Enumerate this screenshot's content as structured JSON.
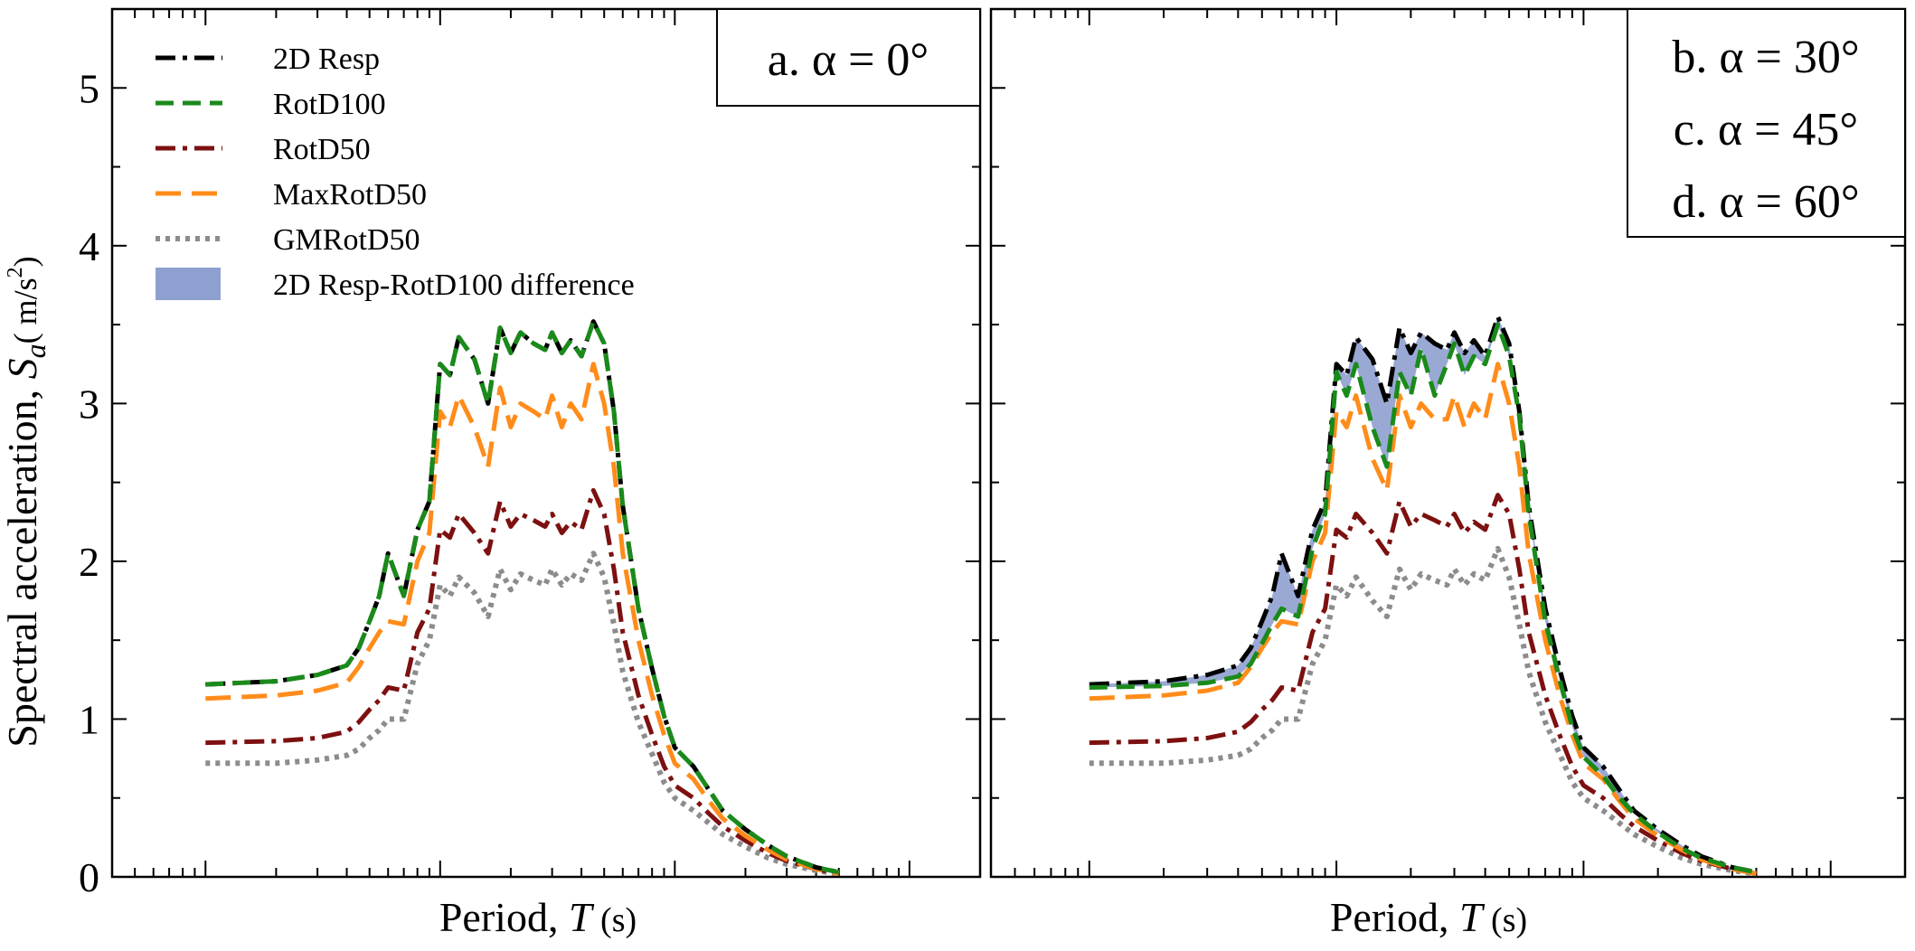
{
  "figure": {
    "ylabel_main": "Spectral acceleration, ",
    "ylabel_symbol": "S",
    "ylabel_sub": "a",
    "ylabel_unit": "( m/s",
    "ylabel_unit_sup": "2",
    "ylabel_unit_close": ")",
    "xlabel_main": "Period, ",
    "xlabel_symbol": "T",
    "xlabel_unit": " (s)"
  },
  "legend": {
    "items": [
      {
        "label": "2D Resp",
        "color": "#000000",
        "style": "dashdot"
      },
      {
        "label": "RotD100",
        "color": "#1a8a1a",
        "style": "dashed"
      },
      {
        "label": "RotD50",
        "color": "#7d1010",
        "style": "dashdot"
      },
      {
        "label": "MaxRotD50",
        "color": "#ff8c1a",
        "style": "longdash"
      },
      {
        "label": "GMRotD50",
        "color": "#8c8c8c",
        "style": "dotted"
      },
      {
        "label": "2D Resp-RotD100 difference",
        "color": "#8ea0cf",
        "style": "fill"
      }
    ]
  },
  "panels": {
    "left": {
      "labels": [
        "a. α = 0°"
      ]
    },
    "right": {
      "labels": [
        "b. α = 30°",
        "c. α = 45°",
        "d. α = 60°"
      ]
    }
  },
  "chart_data": [
    {
      "type": "line",
      "panel": "a. α = 0°",
      "xlabel": "Period, T (s)",
      "ylabel": "Spectral acceleration, Sa ( m/s²)",
      "ylim": [
        0,
        5.5
      ],
      "yticks": [
        0,
        1,
        2,
        3,
        4,
        5
      ],
      "xscale": "log",
      "x": [
        0.01,
        0.02,
        0.03,
        0.04,
        0.045,
        0.05,
        0.055,
        0.06,
        0.07,
        0.08,
        0.09,
        0.1,
        0.11,
        0.12,
        0.14,
        0.16,
        0.18,
        0.2,
        0.22,
        0.25,
        0.28,
        0.3,
        0.33,
        0.36,
        0.4,
        0.45,
        0.5,
        0.55,
        0.6,
        0.7,
        0.8,
        0.9,
        1.0,
        1.2,
        1.4,
        1.6,
        2.0,
        2.5,
        3.0,
        4.0,
        5.0
      ],
      "series": [
        {
          "name": "2D Resp",
          "values": [
            1.22,
            1.24,
            1.28,
            1.34,
            1.45,
            1.62,
            1.78,
            2.05,
            1.78,
            2.2,
            2.38,
            3.25,
            3.18,
            3.42,
            3.28,
            3.0,
            3.48,
            3.32,
            3.45,
            3.38,
            3.34,
            3.45,
            3.32,
            3.4,
            3.3,
            3.52,
            3.38,
            2.95,
            2.35,
            1.7,
            1.32,
            1.02,
            0.82,
            0.7,
            0.55,
            0.42,
            0.3,
            0.2,
            0.13,
            0.06,
            0.03
          ]
        },
        {
          "name": "RotD100",
          "values": [
            1.22,
            1.24,
            1.28,
            1.34,
            1.45,
            1.62,
            1.78,
            2.05,
            1.78,
            2.2,
            2.38,
            3.25,
            3.18,
            3.42,
            3.28,
            3.0,
            3.48,
            3.32,
            3.45,
            3.38,
            3.34,
            3.45,
            3.32,
            3.4,
            3.3,
            3.52,
            3.38,
            2.95,
            2.35,
            1.7,
            1.32,
            1.02,
            0.82,
            0.7,
            0.55,
            0.42,
            0.3,
            0.2,
            0.13,
            0.06,
            0.03
          ]
        },
        {
          "name": "RotD50",
          "values": [
            0.85,
            0.86,
            0.88,
            0.92,
            0.98,
            1.06,
            1.12,
            1.2,
            1.18,
            1.55,
            1.7,
            2.2,
            2.15,
            2.3,
            2.18,
            2.05,
            2.38,
            2.22,
            2.3,
            2.26,
            2.22,
            2.3,
            2.18,
            2.25,
            2.2,
            2.45,
            2.3,
            1.95,
            1.55,
            1.15,
            0.9,
            0.7,
            0.58,
            0.5,
            0.4,
            0.32,
            0.23,
            0.15,
            0.1,
            0.05,
            0.02
          ]
        },
        {
          "name": "MaxRotD50",
          "values": [
            1.13,
            1.15,
            1.18,
            1.23,
            1.33,
            1.45,
            1.55,
            1.62,
            1.6,
            2.0,
            2.18,
            2.95,
            2.85,
            3.05,
            2.85,
            2.6,
            3.1,
            2.85,
            3.0,
            2.95,
            2.9,
            3.05,
            2.85,
            3.0,
            2.9,
            3.25,
            3.0,
            2.6,
            2.05,
            1.5,
            1.15,
            0.9,
            0.72,
            0.62,
            0.48,
            0.37,
            0.26,
            0.17,
            0.11,
            0.05,
            0.02
          ]
        },
        {
          "name": "GMRotD50",
          "values": [
            0.72,
            0.72,
            0.74,
            0.77,
            0.81,
            0.88,
            0.93,
            1.0,
            1.0,
            1.35,
            1.5,
            1.85,
            1.78,
            1.9,
            1.8,
            1.65,
            1.95,
            1.82,
            1.92,
            1.88,
            1.85,
            1.95,
            1.85,
            1.92,
            1.88,
            2.05,
            1.9,
            1.6,
            1.3,
            0.98,
            0.78,
            0.6,
            0.5,
            0.42,
            0.34,
            0.27,
            0.19,
            0.12,
            0.08,
            0.04,
            0.02
          ]
        }
      ]
    },
    {
      "type": "line",
      "panel": "b–d. α = 30°, 45°, 60°",
      "xlabel": "Period, T (s)",
      "ylabel": "",
      "ylim": [
        0,
        5.5
      ],
      "yticks": [
        0,
        1,
        2,
        3,
        4,
        5
      ],
      "xscale": "log",
      "x": [
        0.01,
        0.02,
        0.03,
        0.04,
        0.045,
        0.05,
        0.055,
        0.06,
        0.07,
        0.08,
        0.09,
        0.1,
        0.11,
        0.12,
        0.14,
        0.16,
        0.18,
        0.2,
        0.22,
        0.25,
        0.28,
        0.3,
        0.33,
        0.36,
        0.4,
        0.45,
        0.5,
        0.55,
        0.6,
        0.7,
        0.8,
        0.9,
        1.0,
        1.2,
        1.4,
        1.6,
        2.0,
        2.5,
        3.0,
        4.0,
        5.0
      ],
      "series": [
        {
          "name": "2D Resp",
          "values": [
            1.22,
            1.24,
            1.28,
            1.34,
            1.45,
            1.62,
            1.78,
            2.05,
            1.78,
            2.2,
            2.38,
            3.25,
            3.18,
            3.42,
            3.28,
            3.0,
            3.48,
            3.32,
            3.45,
            3.38,
            3.34,
            3.45,
            3.32,
            3.4,
            3.3,
            3.55,
            3.38,
            2.95,
            2.35,
            1.7,
            1.32,
            1.02,
            0.82,
            0.7,
            0.55,
            0.42,
            0.3,
            0.2,
            0.13,
            0.06,
            0.03
          ]
        },
        {
          "name": "RotD100",
          "values": [
            1.2,
            1.21,
            1.23,
            1.27,
            1.35,
            1.48,
            1.6,
            1.7,
            1.65,
            2.08,
            2.3,
            3.2,
            3.05,
            3.25,
            2.85,
            2.6,
            3.2,
            3.05,
            3.35,
            3.05,
            3.25,
            3.38,
            3.18,
            3.3,
            3.25,
            3.5,
            3.3,
            2.92,
            2.3,
            1.62,
            1.25,
            0.95,
            0.76,
            0.64,
            0.5,
            0.4,
            0.28,
            0.18,
            0.12,
            0.06,
            0.03
          ]
        },
        {
          "name": "RotD50",
          "values": [
            0.85,
            0.86,
            0.88,
            0.92,
            0.98,
            1.06,
            1.12,
            1.2,
            1.18,
            1.55,
            1.7,
            2.2,
            2.15,
            2.3,
            2.18,
            2.05,
            2.38,
            2.22,
            2.3,
            2.26,
            2.22,
            2.3,
            2.18,
            2.25,
            2.2,
            2.42,
            2.3,
            1.95,
            1.55,
            1.15,
            0.9,
            0.7,
            0.58,
            0.5,
            0.4,
            0.32,
            0.23,
            0.15,
            0.1,
            0.05,
            0.02
          ]
        },
        {
          "name": "MaxRotD50",
          "values": [
            1.13,
            1.15,
            1.18,
            1.23,
            1.33,
            1.45,
            1.55,
            1.62,
            1.6,
            2.0,
            2.18,
            2.95,
            2.85,
            3.05,
            2.65,
            2.45,
            3.05,
            2.85,
            3.0,
            2.9,
            2.9,
            3.05,
            2.85,
            3.0,
            2.9,
            3.25,
            3.0,
            2.6,
            2.05,
            1.5,
            1.15,
            0.9,
            0.72,
            0.62,
            0.48,
            0.37,
            0.26,
            0.17,
            0.11,
            0.05,
            0.02
          ]
        },
        {
          "name": "GMRotD50",
          "values": [
            0.72,
            0.72,
            0.74,
            0.77,
            0.81,
            0.88,
            0.93,
            1.0,
            1.0,
            1.35,
            1.5,
            1.85,
            1.78,
            1.9,
            1.75,
            1.65,
            1.95,
            1.82,
            1.92,
            1.88,
            1.85,
            1.95,
            1.85,
            1.92,
            1.88,
            2.08,
            1.9,
            1.6,
            1.3,
            0.98,
            0.78,
            0.6,
            0.5,
            0.42,
            0.34,
            0.27,
            0.19,
            0.12,
            0.08,
            0.04,
            0.02
          ]
        }
      ]
    }
  ]
}
